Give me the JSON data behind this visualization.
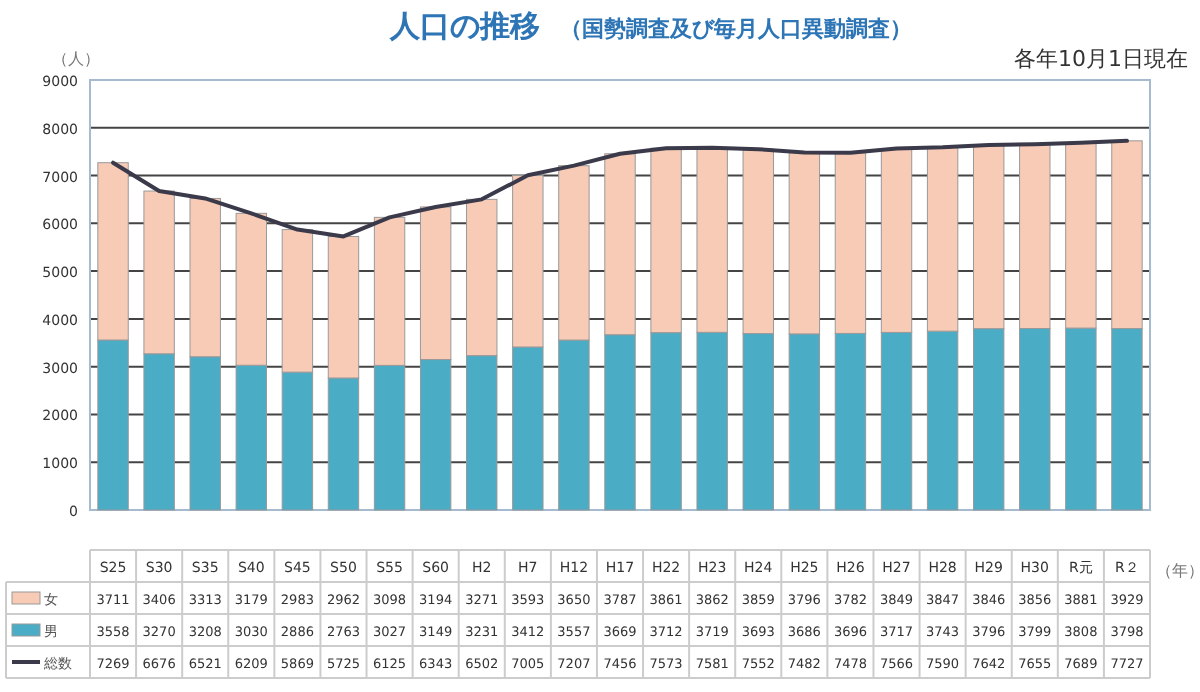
{
  "chart_data": {
    "type": "bar",
    "title": "人口の推移",
    "subtitle": "（国勢調査及び毎月人口異動調査）",
    "ylabel": "（人）",
    "xlabel": "（年）",
    "annotations": [
      "各年10月1日現在"
    ],
    "categories": [
      "S25",
      "S30",
      "S35",
      "S40",
      "S45",
      "S50",
      "S55",
      "S60",
      "H2",
      "H7",
      "H12",
      "H17",
      "H22",
      "H23",
      "H24",
      "H25",
      "H26",
      "H27",
      "H28",
      "H29",
      "H30",
      "R元",
      "R２"
    ],
    "stacked": true,
    "data_labels": true,
    "grid": "y",
    "legend": "bottom",
    "ylim": [
      0,
      9000
    ],
    "yticks": [
      0,
      1000,
      2000,
      3000,
      4000,
      5000,
      6000,
      7000,
      8000,
      9000
    ],
    "series": [
      {
        "name": "男",
        "color": "#4bacc6",
        "values": [
          3558,
          3270,
          3208,
          3030,
          2886,
          2763,
          3027,
          3149,
          3231,
          3412,
          3557,
          3669,
          3712,
          3719,
          3693,
          3686,
          3696,
          3717,
          3743,
          3796,
          3799,
          3808,
          3798
        ]
      },
      {
        "name": "女",
        "color": "#f8cbb6",
        "values": [
          3711,
          3406,
          3313,
          3179,
          2983,
          2962,
          3098,
          3194,
          3271,
          3593,
          3650,
          3787,
          3861,
          3862,
          3859,
          3796,
          3782,
          3849,
          3847,
          3846,
          3856,
          3881,
          3929
        ]
      },
      {
        "name": "総数",
        "type": "line",
        "color": "#3a3a4a",
        "values": [
          7269,
          6676,
          6521,
          6209,
          5869,
          5725,
          6125,
          6343,
          6502,
          7005,
          7207,
          7456,
          7573,
          7581,
          7552,
          7482,
          7478,
          7566,
          7590,
          7642,
          7655,
          7689,
          7727
        ]
      }
    ]
  }
}
